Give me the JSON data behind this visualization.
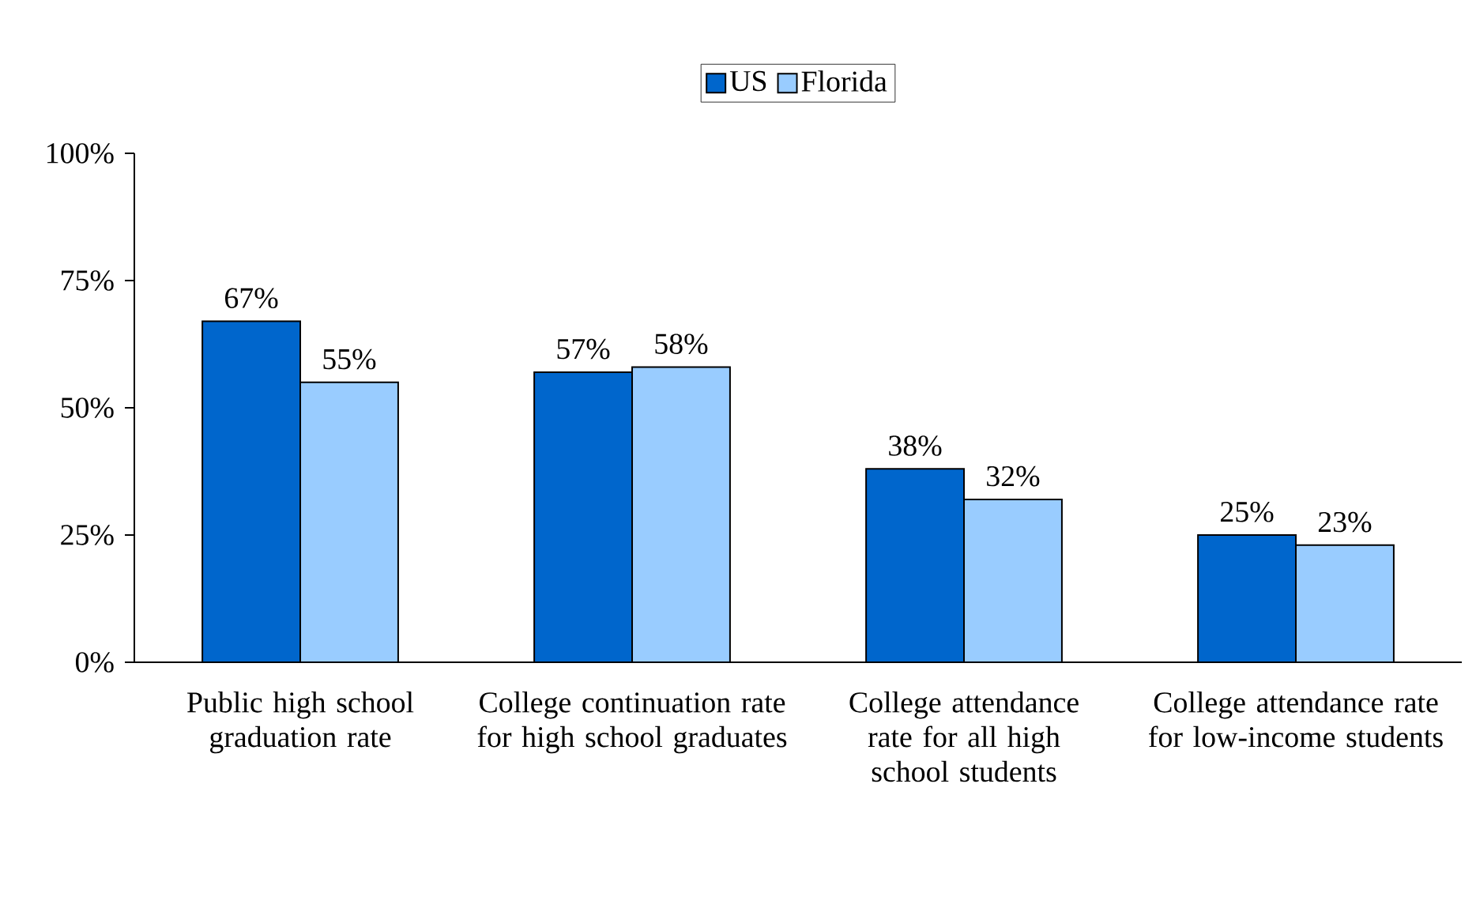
{
  "chart_data": {
    "type": "bar",
    "categories": [
      "Public high school graduation rate",
      "College continuation rate for high school graduates",
      "College attendance rate for all high school students",
      "College attendance rate for low-income students"
    ],
    "series": [
      {
        "name": "US",
        "color": "#0066cc",
        "values": [
          67,
          57,
          38,
          25
        ],
        "value_labels": [
          "67%",
          "57%",
          "38%",
          "25%"
        ]
      },
      {
        "name": "Florida",
        "color": "#99ccff",
        "values": [
          55,
          58,
          32,
          23
        ],
        "value_labels": [
          "55%",
          "58%",
          "32%",
          "23%"
        ]
      }
    ],
    "ylim": [
      0,
      100
    ],
    "yticks": [
      {
        "value": 0,
        "label": "0%"
      },
      {
        "value": 25,
        "label": "25%"
      },
      {
        "value": 50,
        "label": "50%"
      },
      {
        "value": 75,
        "label": "75%"
      },
      {
        "value": 100,
        "label": "100%"
      }
    ],
    "grid": false,
    "legend": "top"
  }
}
